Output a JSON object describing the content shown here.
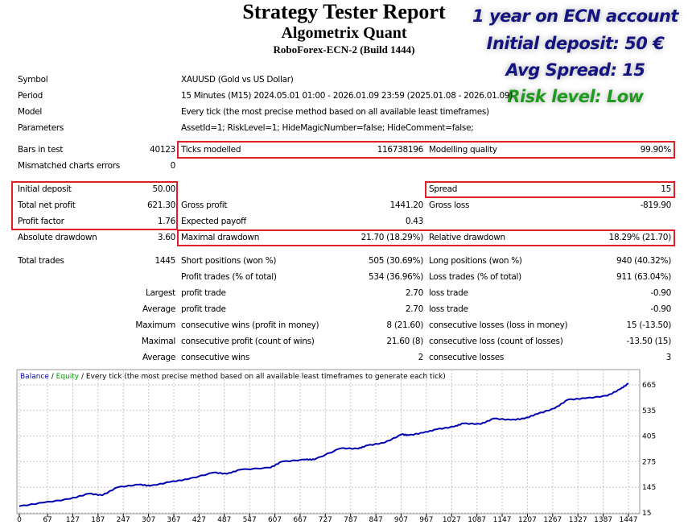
{
  "header": {
    "title": "Strategy Tester Report",
    "subtitle": "Algometrix Quant",
    "build": "RoboForex-ECN-2 (Build 1444)"
  },
  "overlay": {
    "line1": "1 year on ECN account",
    "line2": "Initial deposit: 50 €",
    "line3": "Avg Spread: 15",
    "line4": "Risk level: Low",
    "color_main": "#141480",
    "color_risk": "#1e9a1e"
  },
  "info": [
    {
      "label": "Symbol",
      "value": "XAUUSD (Gold vs US Dollar)"
    },
    {
      "label": "Period",
      "value": "15 Minutes (M15) 2024.05.01 01:00 - 2026.01.09 23:59 (2025.01.08 - 2026.01.09)"
    },
    {
      "label": "Model",
      "value": "Every tick (the most precise method based on all available least timeframes)"
    },
    {
      "label": "Parameters",
      "value": "AssetId=1; RiskLevel=1; HideMagicNumber=false; HideComment=false;"
    }
  ],
  "stats": [
    [
      "Bars in test",
      "40123",
      "Ticks modelled",
      "116738196",
      "Modelling quality",
      "99.90%"
    ],
    [
      "Mismatched charts errors",
      "0",
      "",
      "",
      "",
      ""
    ],
    [
      "Initial deposit",
      "50.00",
      "",
      "",
      "Spread",
      "15"
    ],
    [
      "Total net profit",
      "621.30",
      "Gross profit",
      "1441.20",
      "Gross loss",
      "-819.90"
    ],
    [
      "Profit factor",
      "1.76",
      "Expected payoff",
      "0.43",
      "",
      ""
    ],
    [
      "Absolute drawdown",
      "3.60",
      "Maximal drawdown",
      "21.70 (18.29%)",
      "Relative drawdown",
      "18.29% (21.70)"
    ],
    [
      "Total trades",
      "1445",
      "Short positions (won %)",
      "505 (30.69%)",
      "Long positions (won %)",
      "940 (40.32%)"
    ],
    [
      "",
      "",
      "Profit trades (% of total)",
      "534 (36.96%)",
      "Loss trades (% of total)",
      "911 (63.04%)"
    ],
    [
      "",
      "Largest",
      "profit trade",
      "2.70",
      "loss trade",
      "-0.90"
    ],
    [
      "",
      "Average",
      "profit trade",
      "2.70",
      "loss trade",
      "-0.90"
    ],
    [
      "",
      "Maximum",
      "consecutive wins (profit in money)",
      "8 (21.60)",
      "consecutive losses (loss in money)",
      "15 (-13.50)"
    ],
    [
      "",
      "Maximal",
      "consecutive profit (count of wins)",
      "21.60 (8)",
      "consecutive loss (count of losses)",
      "-13.50 (15)"
    ],
    [
      "",
      "Average",
      "consecutive wins",
      "2",
      "consecutive losses",
      "3"
    ]
  ],
  "chart": {
    "legend_balance": "Balance",
    "legend_sep1": " / ",
    "legend_equity": "Equity",
    "legend_rest": " / Every tick (the most precise method based on all available least timeframes to generate each tick)",
    "balance_color": "#0000b0",
    "equity_color": "#00b000"
  },
  "chart_data": {
    "type": "line",
    "title": "Balance / Equity / Every tick (the most precise method based on all available least timeframes to generate each tick)",
    "x_ticks": [
      0,
      67,
      127,
      187,
      247,
      307,
      367,
      427,
      487,
      547,
      607,
      667,
      727,
      787,
      847,
      907,
      967,
      1027,
      1087,
      1147,
      1207,
      1267,
      1327,
      1387,
      1447
    ],
    "y_ticks": [
      15,
      145,
      275,
      405,
      535,
      665
    ],
    "xlim": [
      0,
      1447
    ],
    "ylim": [
      15,
      665
    ],
    "grid": true,
    "series": [
      {
        "name": "Balance",
        "x": [
          0,
          57,
          120,
          166,
          197,
          233,
          285,
          311,
          358,
          400,
          462,
          493,
          524,
          597,
          623,
          680,
          701,
          763,
          805,
          826,
          867,
          909,
          924,
          960,
          991,
          1033,
          1054,
          1096,
          1127,
          1168,
          1200,
          1231,
          1272,
          1303,
          1345,
          1397,
          1428,
          1447
        ],
        "y": [
          49,
          67,
          86,
          113,
          104,
          145,
          159,
          152,
          172,
          186,
          220,
          213,
          234,
          245,
          275,
          286,
          286,
          343,
          341,
          357,
          371,
          414,
          409,
          422,
          439,
          453,
          469,
          466,
          494,
          487,
          494,
          518,
          546,
          590,
          597,
          610,
          644,
          672
        ]
      }
    ]
  }
}
